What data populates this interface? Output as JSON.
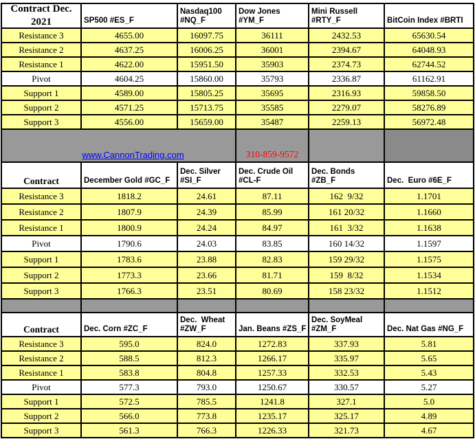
{
  "colors": {
    "cell_yellow": "#FFFF99",
    "band_gray": "#999999",
    "band_gray_dark": "#8A8A8A",
    "link_blue": "#0000FF",
    "phone_red": "#FF0000",
    "border_black": "#000000"
  },
  "band": {
    "link": "www.CannonTrading.com",
    "phone": "310-859-9572"
  },
  "s1": {
    "headers": [
      "Contract Dec.\n2021",
      "SP500 #ES_F",
      "Nasdaq100\n#NQ_F",
      "Dow Jones\n#YM_F",
      "Mini Russell\n#RTY_F",
      "BitCoin Index #BRTI"
    ],
    "rows": [
      {
        "label": "Resistance 3",
        "values": [
          "4655.00",
          "16097.75",
          "36111",
          "2432.53",
          "65630.54"
        ]
      },
      {
        "label": "Resistance 2",
        "values": [
          "4637.25",
          "16006.25",
          "36001",
          "2394.67",
          "64048.93"
        ]
      },
      {
        "label": "Resistance 1",
        "values": [
          "4622.00",
          "15951.50",
          "35903",
          "2374.73",
          "62744.52"
        ]
      },
      {
        "label": "Pivot",
        "values": [
          "4604.25",
          "15860.00",
          "35793",
          "2336.87",
          "61162.91"
        ]
      },
      {
        "label": "Support 1",
        "values": [
          "4589.00",
          "15805.25",
          "35695",
          "2316.93",
          "59858.50"
        ]
      },
      {
        "label": "Support 2",
        "values": [
          "4571.25",
          "15713.75",
          "35585",
          "2279.07",
          "58276.89"
        ]
      },
      {
        "label": "Support 3",
        "values": [
          "4556.00",
          "15659.00",
          "35487",
          "2259.13",
          "56972.48"
        ]
      }
    ]
  },
  "s2": {
    "headers": [
      "Contract",
      "December Gold #GC_F",
      "Dec. Silver\n#SI_F",
      "Dec. Crude Oil\n#CL-F",
      "Dec. Bonds  #ZB_F",
      "Dec.  Euro #6E_F"
    ],
    "rows": [
      {
        "label": "Resistance 3",
        "values": [
          "1818.2",
          "24.61",
          "87.11",
          "162  9/32",
          "1.1701"
        ]
      },
      {
        "label": "Resistance 2",
        "values": [
          "1807.9",
          "24.39",
          "85.99",
          "161 20/32",
          "1.1660"
        ]
      },
      {
        "label": "Resistance 1",
        "values": [
          "1800.9",
          "24.24",
          "84.97",
          "161  3/32",
          "1.1638"
        ]
      },
      {
        "label": "Pivot",
        "values": [
          "1790.6",
          "24.03",
          "83.85",
          "160 14/32",
          "1.1597"
        ]
      },
      {
        "label": "Support 1",
        "values": [
          "1783.6",
          "23.88",
          "82.83",
          "159 29/32",
          "1.1575"
        ]
      },
      {
        "label": "Support 2",
        "values": [
          "1773.3",
          "23.66",
          "81.71",
          "159  8/32",
          "1.1534"
        ]
      },
      {
        "label": "Support 3",
        "values": [
          "1766.3",
          "23.51",
          "80.69",
          "158 23/32",
          "1.1512"
        ]
      }
    ]
  },
  "s3": {
    "headers": [
      "Contract",
      "Dec. Corn #ZC_F",
      "Dec.  Wheat\n#ZW_F",
      "Jan. Beans #ZS_F",
      "Dec. SoyMeal\n#ZM_F",
      "Dec. Nat Gas #NG_F"
    ],
    "rows": [
      {
        "label": "Resistance 3",
        "values": [
          "595.0",
          "824.0",
          "1272.83",
          "337.93",
          "5.81"
        ]
      },
      {
        "label": "Resistance 2",
        "values": [
          "588.5",
          "812.3",
          "1266.17",
          "335.97",
          "5.65"
        ]
      },
      {
        "label": "Resistance 1",
        "values": [
          "583.8",
          "804.8",
          "1257.33",
          "332.53",
          "5.43"
        ]
      },
      {
        "label": "Pivot",
        "values": [
          "577.3",
          "793.0",
          "1250.67",
          "330.57",
          "5.27"
        ]
      },
      {
        "label": "Support 1",
        "values": [
          "572.5",
          "785.5",
          "1241.8",
          "327.1",
          "5.0"
        ]
      },
      {
        "label": "Support 2",
        "values": [
          "566.0",
          "773.8",
          "1235.17",
          "325.17",
          "4.89"
        ]
      },
      {
        "label": "Support 3",
        "values": [
          "561.3",
          "766.3",
          "1226.33",
          "321.73",
          "4.67"
        ]
      }
    ]
  }
}
